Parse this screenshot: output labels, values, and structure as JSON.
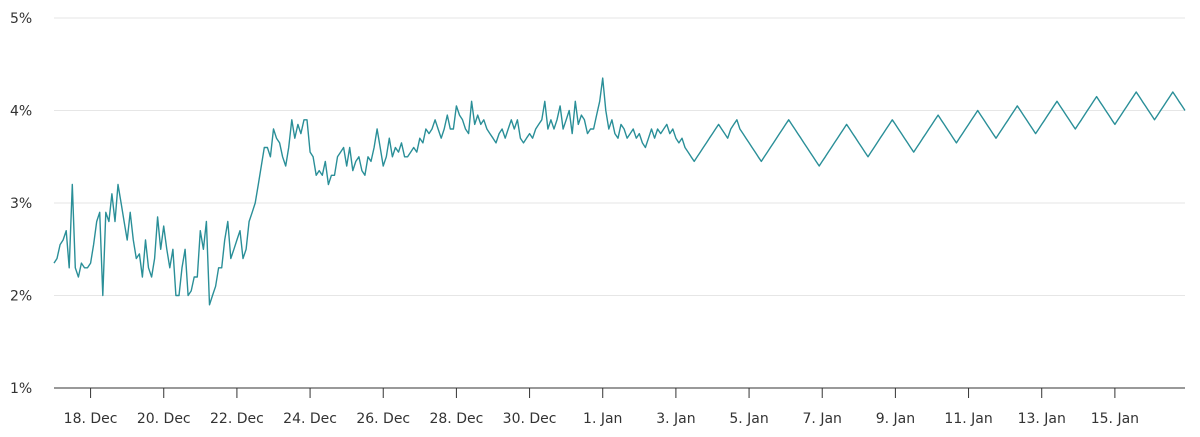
{
  "chart_data": {
    "type": "line",
    "title": "",
    "xlabel": "",
    "ylabel": "",
    "x_range": [
      "2023-12-17",
      "2024-01-16"
    ],
    "ylim": [
      1,
      5
    ],
    "y_ticks": [
      "1%",
      "2%",
      "3%",
      "4%",
      "5%"
    ],
    "x_ticks": [
      "18. Dec",
      "20. Dec",
      "22. Dec",
      "24. Dec",
      "26. Dec",
      "28. Dec",
      "30. Dec",
      "1. Jan",
      "3. Jan",
      "5. Jan",
      "7. Jan",
      "9. Jan",
      "11. Jan",
      "13. Jan",
      "15. Jan"
    ],
    "grid": true,
    "legend": "none",
    "series": [
      {
        "color": "#2a8f98",
        "x": [
          "2023-12-17",
          "2023-12-18",
          "2023-12-19",
          "2023-12-20",
          "2023-12-21",
          "2023-12-22",
          "2023-12-23",
          "2023-12-24",
          "2023-12-25",
          "2023-12-26",
          "2023-12-27",
          "2023-12-28",
          "2023-12-29",
          "2023-12-30",
          "2023-12-31",
          "2024-01-01",
          "2024-01-02",
          "2024-01-03",
          "2024-01-04",
          "2024-01-05",
          "2024-01-06",
          "2024-01-07",
          "2024-01-08",
          "2024-01-09",
          "2024-01-10",
          "2024-01-11",
          "2024-01-12",
          "2024-01-13",
          "2024-01-14",
          "2024-01-15",
          "2024-01-16"
        ],
        "values": [
          2.4,
          2.5,
          2.8,
          2.9,
          2.5,
          2.5,
          2.3,
          2.1,
          2.4,
          2.6,
          3.5,
          3.7,
          3.8,
          3.4,
          3.4,
          3.4,
          3.5,
          3.5,
          3.6,
          3.8,
          3.9,
          3.9,
          3.8,
          3.8,
          3.8,
          3.9,
          3.9,
          4.0,
          4.0,
          3.85,
          3.7
        ],
        "detail_x": [
          "2023-12-17T00:00",
          "2023-12-17T02:00",
          "2023-12-17T04:00",
          "2023-12-17T06:00",
          "2023-12-17T08:00",
          "2023-12-17T10:00",
          "2023-12-17T12:00",
          "2023-12-17T14:00",
          "2023-12-17T16:00",
          "2023-12-17T18:00",
          "2023-12-17T20:00",
          "2023-12-17T22:00",
          "2023-12-18T00:00",
          "2023-12-18T02:00",
          "2023-12-18T04:00",
          "2023-12-18T06:00",
          "2023-12-18T08:00",
          "2023-12-18T10:00",
          "2023-12-18T12:00",
          "2023-12-18T14:00",
          "2023-12-18T16:00",
          "2023-12-18T18:00",
          "2023-12-18T20:00",
          "2023-12-18T22:00",
          "2023-12-19T00:00",
          "2023-12-19T02:00",
          "2023-12-19T04:00",
          "2023-12-19T06:00",
          "2023-12-19T08:00",
          "2023-12-19T10:00",
          "2023-12-19T12:00",
          "2023-12-19T14:00",
          "2023-12-19T16:00",
          "2023-12-19T18:00",
          "2023-12-19T20:00",
          "2023-12-19T22:00",
          "2023-12-20T00:00",
          "2023-12-20T02:00",
          "2023-12-20T04:00",
          "2023-12-20T06:00",
          "2023-12-20T08:00",
          "2023-12-20T10:00",
          "2023-12-20T12:00",
          "2023-12-20T14:00",
          "2023-12-20T16:00",
          "2023-12-20T18:00",
          "2023-12-20T20:00",
          "2023-12-20T22:00",
          "2023-12-21T00:00",
          "2023-12-21T02:00",
          "2023-12-21T04:00",
          "2023-12-21T06:00",
          "2023-12-21T08:00",
          "2023-12-21T10:00",
          "2023-12-21T12:00",
          "2023-12-21T14:00",
          "2023-12-21T16:00",
          "2023-12-21T18:00",
          "2023-12-21T20:00",
          "2023-12-21T22:00",
          "2023-12-22T00:00",
          "2023-12-22T02:00",
          "2023-12-22T04:00",
          "2023-12-22T06:00",
          "2023-12-22T08:00",
          "2023-12-22T10:00",
          "2023-12-22T12:00",
          "2023-12-22T14:00",
          "2023-12-22T16:00",
          "2023-12-22T18:00",
          "2023-12-22T20:00",
          "2023-12-22T22:00",
          "2023-12-23T00:00",
          "2023-12-23T02:00",
          "2023-12-23T04:00",
          "2023-12-23T06:00",
          "2023-12-23T08:00",
          "2023-12-23T10:00",
          "2023-12-23T12:00",
          "2023-12-23T14:00",
          "2023-12-23T16:00",
          "2023-12-23T18:00",
          "2023-12-23T20:00",
          "2023-12-23T22:00",
          "2023-12-24T00:00",
          "2023-12-24T02:00",
          "2023-12-24T04:00",
          "2023-12-24T06:00",
          "2023-12-24T08:00",
          "2023-12-24T10:00",
          "2023-12-24T12:00",
          "2023-12-24T14:00",
          "2023-12-24T16:00",
          "2023-12-24T18:00",
          "2023-12-24T20:00",
          "2023-12-24T22:00",
          "2023-12-25T00:00",
          "2023-12-25T02:00",
          "2023-12-25T04:00",
          "2023-12-25T06:00",
          "2023-12-25T08:00",
          "2023-12-25T10:00",
          "2023-12-25T12:00",
          "2023-12-25T14:00",
          "2023-12-25T16:00",
          "2023-12-25T18:00",
          "2023-12-25T20:00",
          "2023-12-25T22:00",
          "2023-12-26T00:00",
          "2023-12-26T02:00",
          "2023-12-26T04:00",
          "2023-12-26T06:00",
          "2023-12-26T08:00",
          "2023-12-26T10:00",
          "2023-12-26T12:00",
          "2023-12-26T14:00",
          "2023-12-26T16:00",
          "2023-12-26T18:00",
          "2023-12-26T20:00",
          "2023-12-26T22:00",
          "2023-12-27T00:00",
          "2023-12-27T02:00",
          "2023-12-27T04:00",
          "2023-12-27T06:00",
          "2023-12-27T08:00",
          "2023-12-27T10:00",
          "2023-12-27T12:00",
          "2023-12-27T14:00",
          "2023-12-27T16:00",
          "2023-12-27T18:00",
          "2023-12-27T20:00",
          "2023-12-27T22:00",
          "2023-12-28T00:00",
          "2023-12-28T02:00",
          "2023-12-28T04:00",
          "2023-12-28T06:00",
          "2023-12-28T08:00",
          "2023-12-28T10:00",
          "2023-12-28T12:00",
          "2023-12-28T14:00",
          "2023-12-28T16:00",
          "2023-12-28T18:00",
          "2023-12-28T20:00",
          "2023-12-28T22:00",
          "2023-12-29T00:00",
          "2023-12-29T02:00",
          "2023-12-29T04:00",
          "2023-12-29T06:00",
          "2023-12-29T08:00",
          "2023-12-29T10:00",
          "2023-12-29T12:00",
          "2023-12-29T14:00",
          "2023-12-29T16:00",
          "2023-12-29T18:00",
          "2023-12-29T20:00",
          "2023-12-29T22:00",
          "2023-12-30T00:00",
          "2023-12-30T02:00",
          "2023-12-30T04:00",
          "2023-12-30T06:00",
          "2023-12-30T08:00",
          "2023-12-30T10:00",
          "2023-12-30T12:00",
          "2023-12-30T14:00",
          "2023-12-30T16:00",
          "2023-12-30T18:00",
          "2023-12-30T20:00",
          "2023-12-30T22:00",
          "2023-12-31T00:00",
          "2023-12-31T02:00",
          "2023-12-31T04:00",
          "2023-12-31T06:00",
          "2023-12-31T08:00",
          "2023-12-31T10:00",
          "2023-12-31T12:00",
          "2023-12-31T14:00",
          "2023-12-31T16:00",
          "2023-12-31T18:00",
          "2023-12-31T20:00",
          "2023-12-31T22:00",
          "2024-01-01T00:00",
          "2024-01-01T02:00",
          "2024-01-01T04:00",
          "2024-01-01T06:00",
          "2024-01-01T08:00",
          "2024-01-01T10:00",
          "2024-01-01T12:00",
          "2024-01-01T14:00",
          "2024-01-01T16:00",
          "2024-01-01T18:00",
          "2024-01-01T20:00",
          "2024-01-01T22:00",
          "2024-01-02T00:00",
          "2024-01-02T02:00",
          "2024-01-02T04:00",
          "2024-01-02T06:00",
          "2024-01-02T08:00",
          "2024-01-02T10:00",
          "2024-01-02T12:00",
          "2024-01-02T14:00",
          "2024-01-02T16:00",
          "2024-01-02T18:00",
          "2024-01-02T20:00",
          "2024-01-02T22:00",
          "2024-01-03T00:00",
          "2024-01-03T02:00",
          "2024-01-03T04:00",
          "2024-01-03T06:00",
          "2024-01-03T08:00",
          "2024-01-03T10:00",
          "2024-01-03T12:00",
          "2024-01-03T14:00",
          "2024-01-03T16:00",
          "2024-01-03T18:00",
          "2024-01-03T20:00",
          "2024-01-03T22:00",
          "2024-01-04T00:00",
          "2024-01-04T02:00",
          "2024-01-04T04:00",
          "2024-01-04T06:00",
          "2024-01-04T08:00",
          "2024-01-04T10:00",
          "2024-01-04T12:00",
          "2024-01-04T14:00",
          "2024-01-04T16:00",
          "2024-01-04T18:00",
          "2024-01-04T20:00",
          "2024-01-04T22:00",
          "2024-01-05T00:00",
          "2024-01-05T02:00",
          "2024-01-05T04:00",
          "2024-01-05T06:00",
          "2024-01-05T08:00",
          "2024-01-05T10:00",
          "2024-01-05T12:00",
          "2024-01-05T14:00",
          "2024-01-05T16:00",
          "2024-01-05T18:00",
          "2024-01-05T20:00",
          "2024-01-05T22:00",
          "2024-01-06T00:00",
          "2024-01-06T02:00",
          "2024-01-06T04:00",
          "2024-01-06T06:00",
          "2024-01-06T08:00",
          "2024-01-06T10:00",
          "2024-01-06T12:00",
          "2024-01-06T14:00",
          "2024-01-06T16:00",
          "2024-01-06T18:00",
          "2024-01-06T20:00",
          "2024-01-06T22:00",
          "2024-01-07T00:00",
          "2024-01-07T02:00",
          "2024-01-07T04:00",
          "2024-01-07T06:00",
          "2024-01-07T08:00",
          "2024-01-07T10:00",
          "2024-01-07T12:00",
          "2024-01-07T14:00",
          "2024-01-07T16:00",
          "2024-01-07T18:00",
          "2024-01-07T20:00",
          "2024-01-07T22:00",
          "2024-01-08T00:00",
          "2024-01-08T02:00",
          "2024-01-08T04:00",
          "2024-01-08T06:00",
          "2024-01-08T08:00",
          "2024-01-08T10:00",
          "2024-01-08T12:00",
          "2024-01-08T14:00",
          "2024-01-08T16:00",
          "2024-01-08T18:00",
          "2024-01-08T20:00",
          "2024-01-08T22:00",
          "2024-01-09T00:00",
          "2024-01-09T02:00",
          "2024-01-09T04:00",
          "2024-01-09T06:00",
          "2024-01-09T08:00",
          "2024-01-09T10:00",
          "2024-01-09T12:00",
          "2024-01-09T14:00",
          "2024-01-09T16:00",
          "2024-01-09T18:00",
          "2024-01-09T20:00",
          "2024-01-09T22:00",
          "2024-01-10T00:00",
          "2024-01-10T02:00",
          "2024-01-10T04:00",
          "2024-01-10T06:00",
          "2024-01-10T08:00",
          "2024-01-10T10:00",
          "2024-01-10T12:00",
          "2024-01-10T14:00",
          "2024-01-10T16:00",
          "2024-01-10T18:00",
          "2024-01-10T20:00",
          "2024-01-10T22:00",
          "2024-01-11T00:00",
          "2024-01-11T02:00",
          "2024-01-11T04:00",
          "2024-01-11T06:00",
          "2024-01-11T08:00",
          "2024-01-11T10:00",
          "2024-01-11T12:00",
          "2024-01-11T14:00",
          "2024-01-11T16:00",
          "2024-01-11T18:00",
          "2024-01-11T20:00",
          "2024-01-11T22:00",
          "2024-01-12T00:00",
          "2024-01-12T02:00",
          "2024-01-12T04:00",
          "2024-01-12T06:00",
          "2024-01-12T08:00",
          "2024-01-12T10:00",
          "2024-01-12T12:00",
          "2024-01-12T14:00",
          "2024-01-12T16:00",
          "2024-01-12T18:00",
          "2024-01-12T20:00",
          "2024-01-12T22:00",
          "2024-01-13T00:00",
          "2024-01-13T02:00",
          "2024-01-13T04:00",
          "2024-01-13T06:00",
          "2024-01-13T08:00",
          "2024-01-13T10:00",
          "2024-01-13T12:00",
          "2024-01-13T14:00",
          "2024-01-13T16:00",
          "2024-01-13T18:00",
          "2024-01-13T20:00",
          "2024-01-13T22:00",
          "2024-01-14T00:00",
          "2024-01-14T02:00",
          "2024-01-14T04:00",
          "2024-01-14T06:00",
          "2024-01-14T08:00",
          "2024-01-14T10:00",
          "2024-01-14T12:00",
          "2024-01-14T14:00",
          "2024-01-14T16:00",
          "2024-01-14T18:00",
          "2024-01-14T20:00",
          "2024-01-14T22:00",
          "2024-01-15T00:00",
          "2024-01-15T02:00",
          "2024-01-15T04:00",
          "2024-01-15T06:00",
          "2024-01-15T08:00",
          "2024-01-15T10:00",
          "2024-01-15T12:00",
          "2024-01-15T14:00",
          "2024-01-15T16:00",
          "2024-01-15T18:00",
          "2024-01-15T20:00",
          "2024-01-15T22:00",
          "2024-01-16T00:00",
          "2024-01-16T02:00",
          "2024-01-16T04:00",
          "2024-01-16T06:00",
          "2024-01-16T08:00",
          "2024-01-16T10:00",
          "2024-01-16T12:00",
          "2024-01-16T14:00",
          "2024-01-16T16:00",
          "2024-01-16T18:00",
          "2024-01-16T20:00",
          "2024-01-16T22:00"
        ],
        "detail_y": [
          2.35,
          2.4,
          2.55,
          2.6,
          2.7,
          2.3,
          3.2,
          2.3,
          2.2,
          2.35,
          2.3,
          2.3,
          2.35,
          2.55,
          2.8,
          2.9,
          2.0,
          2.9,
          2.8,
          3.1,
          2.8,
          3.2,
          3.0,
          2.8,
          2.6,
          2.9,
          2.6,
          2.4,
          2.45,
          2.2,
          2.6,
          2.3,
          2.2,
          2.4,
          2.85,
          2.5,
          2.75,
          2.5,
          2.3,
          2.5,
          2.0,
          2.0,
          2.3,
          2.5,
          2.0,
          2.05,
          2.2,
          2.2,
          2.7,
          2.5,
          2.8,
          1.9,
          2.0,
          2.1,
          2.3,
          2.3,
          2.6,
          2.8,
          2.4,
          2.5,
          2.6,
          2.7,
          2.4,
          2.5,
          2.8,
          2.9,
          3.0,
          3.2,
          3.4,
          3.6,
          3.6,
          3.5,
          3.8,
          3.7,
          3.65,
          3.5,
          3.4,
          3.6,
          3.9,
          3.7,
          3.85,
          3.75,
          3.9,
          3.9,
          3.55,
          3.5,
          3.3,
          3.35,
          3.3,
          3.45,
          3.2,
          3.3,
          3.3,
          3.5,
          3.55,
          3.6,
          3.4,
          3.6,
          3.35,
          3.45,
          3.5,
          3.35,
          3.3,
          3.5,
          3.45,
          3.6,
          3.8,
          3.6,
          3.4,
          3.5,
          3.7,
          3.5,
          3.6,
          3.55,
          3.65,
          3.5,
          3.5,
          3.55,
          3.6,
          3.55,
          3.7,
          3.65,
          3.8,
          3.75,
          3.8,
          3.9,
          3.8,
          3.7,
          3.8,
          3.95,
          3.8,
          3.8,
          4.05,
          3.95,
          3.9,
          3.8,
          3.75,
          4.1,
          3.85,
          3.95,
          3.85,
          3.9,
          3.8,
          3.75,
          3.7,
          3.65,
          3.75,
          3.8,
          3.7,
          3.8,
          3.9,
          3.8,
          3.9,
          3.7,
          3.65,
          3.7,
          3.75,
          3.7,
          3.8,
          3.85,
          3.9,
          4.1,
          3.8,
          3.9,
          3.8,
          3.9,
          4.05,
          3.8,
          3.9,
          4.0,
          3.75,
          4.1,
          3.85,
          3.95,
          3.9,
          3.75,
          3.8,
          3.8,
          3.95,
          4.1,
          4.35,
          4.0,
          3.8,
          3.9,
          3.75,
          3.7,
          3.85,
          3.8,
          3.7,
          3.75,
          3.8,
          3.7,
          3.75,
          3.65,
          3.6,
          3.7,
          3.8,
          3.7,
          3.8,
          3.75,
          3.8,
          3.85,
          3.75,
          3.8,
          3.7,
          3.65,
          3.7,
          3.6,
          3.55,
          3.5,
          3.45,
          3.5,
          3.55,
          3.6,
          3.65,
          3.7,
          3.75,
          3.8,
          3.85,
          3.8,
          3.75,
          3.7,
          3.8,
          3.85,
          3.9,
          3.8,
          3.75,
          3.7,
          3.65,
          3.6,
          3.55,
          3.5,
          3.45,
          3.5,
          3.55,
          3.6,
          3.65,
          3.7,
          3.75,
          3.8,
          3.85,
          3.9,
          3.85,
          3.8,
          3.75,
          3.7,
          3.65,
          3.6,
          3.55,
          3.5,
          3.45,
          3.4,
          3.45,
          3.5,
          3.55,
          3.6,
          3.65,
          3.7,
          3.75,
          3.8,
          3.85,
          3.8,
          3.75,
          3.7,
          3.65,
          3.6,
          3.55,
          3.5,
          3.55,
          3.6,
          3.65,
          3.7,
          3.75,
          3.8,
          3.85,
          3.9,
          3.85,
          3.8,
          3.75,
          3.7,
          3.65,
          3.6,
          3.55,
          3.6,
          3.65,
          3.7,
          3.75,
          3.8,
          3.85,
          3.9,
          3.95,
          3.9,
          3.85,
          3.8,
          3.75,
          3.7,
          3.65,
          3.7,
          3.75,
          3.8,
          3.85,
          3.9,
          3.95,
          4.0,
          3.95,
          3.9,
          3.85,
          3.8,
          3.75,
          3.7,
          3.75,
          3.8,
          3.85,
          3.9,
          3.95,
          4.0,
          4.05,
          4.0,
          3.95,
          3.9,
          3.85,
          3.8,
          3.75,
          3.8,
          3.85,
          3.9,
          3.95,
          4.0,
          4.05,
          4.1,
          4.05,
          4.0,
          3.95,
          3.9,
          3.85,
          3.8,
          3.85,
          3.9,
          3.95,
          4.0,
          4.05,
          4.1,
          4.15,
          4.1,
          4.05,
          4.0,
          3.95,
          3.9,
          3.85,
          3.9,
          3.95,
          4.0,
          4.05,
          4.1,
          4.15,
          4.2,
          4.15,
          4.1,
          4.05,
          4.0,
          3.95,
          3.9,
          3.95,
          4.0,
          4.05,
          4.1,
          4.15,
          4.2,
          4.15,
          4.1,
          4.05,
          4.0,
          3.95,
          3.9,
          3.85,
          3.8,
          3.85,
          3.9,
          3.85,
          3.8,
          3.75,
          3.7,
          3.75,
          3.8,
          3.75,
          3.7,
          3.65,
          3.6
        ]
      }
    ]
  }
}
